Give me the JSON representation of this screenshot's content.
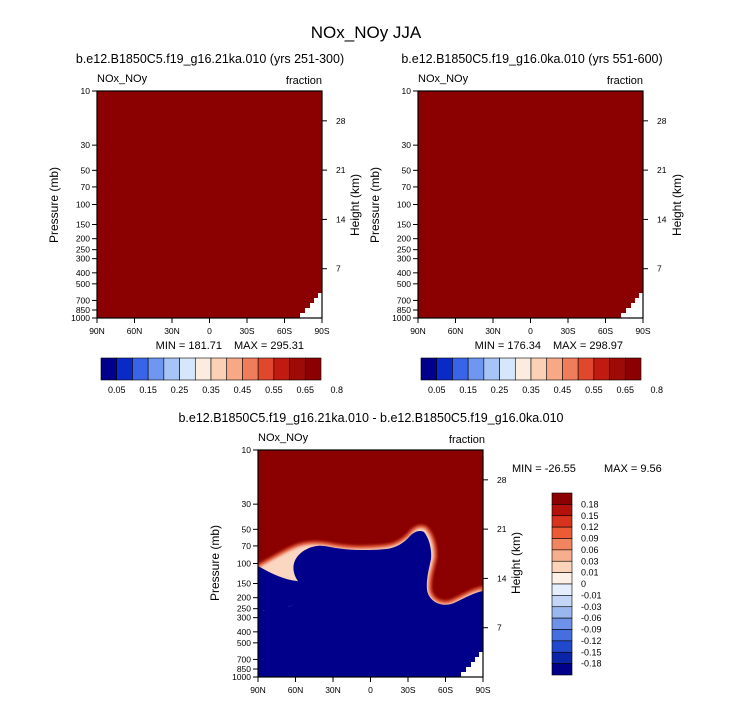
{
  "figure": {
    "title": "NOx_NOy JJA"
  },
  "colors": {
    "saturated": "#8b0000",
    "ocean_low": "#00008b",
    "missing": "#ffffff"
  },
  "chart_data": [
    {
      "type": "heatmap",
      "title": "b.e12.B1850C5.f19_g16.21ka.010 (yrs 251-300)",
      "field_label": "NOx_NOy",
      "units_label": "fraction",
      "ylabel": "Pressure (mb)",
      "ylabel_right": "Height (km)",
      "x_ticks": [
        "90N",
        "60N",
        "30N",
        "0",
        "30S",
        "60S",
        "90S"
      ],
      "y_ticks": [
        "10",
        "30",
        "50",
        "70",
        "100",
        "150",
        "200",
        "250",
        "300",
        "400",
        "500",
        "700",
        "850",
        "1000"
      ],
      "y_right_ticks": [
        "28",
        "21",
        "14",
        "7"
      ],
      "stats": {
        "min_label": "MIN = 181.71",
        "max_label": "MAX = 295.31",
        "min": 181.71,
        "max": 295.31
      },
      "colorbar": {
        "orientation": "horizontal",
        "labels": [
          "0.05",
          "0.15",
          "0.25",
          "0.35",
          "0.45",
          "0.55",
          "0.65",
          "0.8"
        ],
        "colors": [
          "#00008b",
          "#0a2ac8",
          "#3a64e8",
          "#6f96f0",
          "#a6c4f5",
          "#d6e6fb",
          "#fbecdf",
          "#fcd0b5",
          "#f7a987",
          "#ef7c5a",
          "#e0472c",
          "#c11a10",
          "#9e0a05",
          "#8b0000"
        ]
      },
      "field_value_note": "field saturated at top of scale (>0.8)",
      "missing_region": "near-surface corner at 90S"
    },
    {
      "type": "heatmap",
      "title": "b.e12.B1850C5.f19_g16.0ka.010 (yrs 551-600)",
      "field_label": "NOx_NOy",
      "units_label": "fraction",
      "ylabel": "Pressure (mb)",
      "ylabel_right": "Height (km)",
      "x_ticks": [
        "90N",
        "60N",
        "30N",
        "0",
        "30S",
        "60S",
        "90S"
      ],
      "y_ticks": [
        "10",
        "30",
        "50",
        "70",
        "100",
        "150",
        "200",
        "250",
        "300",
        "400",
        "500",
        "700",
        "850",
        "1000"
      ],
      "y_right_ticks": [
        "28",
        "21",
        "14",
        "7"
      ],
      "stats": {
        "min_label": "MIN = 176.34",
        "max_label": "MAX = 298.97",
        "min": 176.34,
        "max": 298.97
      },
      "colorbar": {
        "orientation": "horizontal",
        "labels": [
          "0.05",
          "0.15",
          "0.25",
          "0.35",
          "0.45",
          "0.55",
          "0.65",
          "0.8"
        ],
        "colors": [
          "#00008b",
          "#0a2ac8",
          "#3a64e8",
          "#6f96f0",
          "#a6c4f5",
          "#d6e6fb",
          "#fbecdf",
          "#fcd0b5",
          "#f7a987",
          "#ef7c5a",
          "#e0472c",
          "#c11a10",
          "#9e0a05",
          "#8b0000"
        ]
      }
    },
    {
      "type": "heatmap",
      "title": "b.e12.B1850C5.f19_g16.21ka.010 - b.e12.B1850C5.f19_g16.0ka.010",
      "field_label": "NOx_NOy",
      "units_label": "fraction",
      "ylabel": "Pressure (mb)",
      "ylabel_right": "Height (km)",
      "x_ticks": [
        "90N",
        "60N",
        "30N",
        "0",
        "30S",
        "60S",
        "90S"
      ],
      "y_ticks": [
        "10",
        "30",
        "50",
        "70",
        "100",
        "150",
        "200",
        "250",
        "300",
        "400",
        "500",
        "700",
        "850",
        "1000"
      ],
      "y_right_ticks": [
        "28",
        "21",
        "14",
        "7"
      ],
      "stats": {
        "min_label": "MIN = -26.55",
        "max_label": "MAX =   9.56",
        "min": -26.55,
        "max": 9.56
      },
      "colorbar": {
        "orientation": "vertical",
        "labels": [
          "0.18",
          "0.15",
          "0.12",
          "0.09",
          "0.06",
          "0.03",
          "0.01",
          "0",
          "-0.01",
          "-0.03",
          "-0.06",
          "-0.09",
          "-0.12",
          "-0.15",
          "-0.18"
        ],
        "colors": [
          "#8b0000",
          "#b3120a",
          "#d8331c",
          "#ec5a36",
          "#f2855f",
          "#f7ae8c",
          "#fbd3ba",
          "#fdf0e6",
          "#e4eefc",
          "#c3d6f7",
          "#9bb7f0",
          "#6f92e8",
          "#456fde",
          "#2249cc",
          "#0a26a6",
          "#00008b"
        ]
      },
      "region_boundary_lat": [
        "90N",
        "60N",
        "30N",
        "0",
        "30S",
        "60S",
        "90S"
      ],
      "region_boundary_pressure_mb": [
        100,
        200,
        70,
        80,
        60,
        150,
        200
      ]
    }
  ]
}
